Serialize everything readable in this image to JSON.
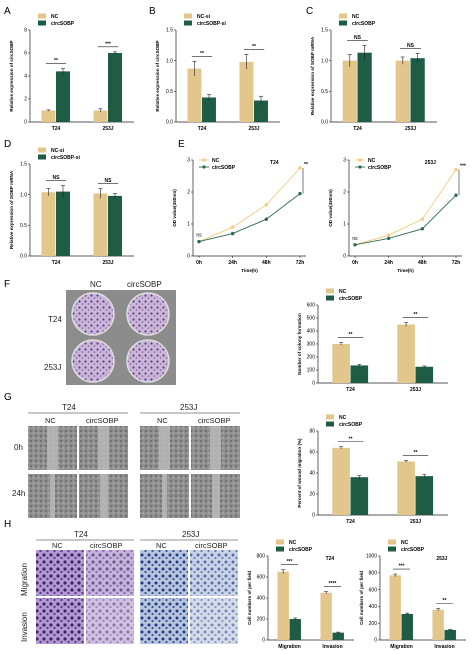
{
  "colors": {
    "nc": "#e3c68c",
    "treat": "#1e5c43",
    "axis": "#222222",
    "line_nc": "#f3cc7a",
    "line_treat": "#2e6a51"
  },
  "panels": {
    "A": "A",
    "B": "B",
    "C": "C",
    "D": "D",
    "E": "E",
    "F": "F",
    "G": "G",
    "H": "H"
  },
  "chart_data": [
    {
      "id": "A",
      "type": "bar",
      "categories": [
        "T24",
        "253J"
      ],
      "series": [
        {
          "name": "NC",
          "values": [
            1.0,
            1.0
          ],
          "err": [
            0.05,
            0.15
          ]
        },
        {
          "name": "circSOBP",
          "values": [
            4.4,
            6.0
          ],
          "err": [
            0.25,
            0.1
          ]
        }
      ],
      "ylabel": "Relative expression of circSOBP",
      "ylim": [
        0,
        8
      ],
      "yticks": [
        "0",
        "2",
        "4",
        "6",
        "8"
      ],
      "sig": [
        "**",
        "***"
      ],
      "legend": "top-left"
    },
    {
      "id": "B",
      "type": "bar",
      "categories": [
        "T24",
        "253J"
      ],
      "series": [
        {
          "name": "NC-si",
          "values": [
            0.87,
            0.98
          ],
          "err": [
            0.12,
            0.12
          ]
        },
        {
          "name": "circSOBP-si",
          "values": [
            0.4,
            0.35
          ],
          "err": [
            0.05,
            0.07
          ]
        }
      ],
      "ylabel": "Relative expression of circSOBP",
      "ylim": [
        0,
        1.5
      ],
      "yticks": [
        "0.0",
        "0.5",
        "1.0",
        "1.5"
      ],
      "sig": [
        "**",
        "**"
      ],
      "legend": "top-left"
    },
    {
      "id": "C",
      "type": "bar",
      "categories": [
        "T24",
        "253J"
      ],
      "series": [
        {
          "name": "NC",
          "values": [
            1.0,
            1.0
          ],
          "err": [
            0.1,
            0.06
          ]
        },
        {
          "name": "circSOBP",
          "values": [
            1.13,
            1.04
          ],
          "err": [
            0.12,
            0.08
          ]
        }
      ],
      "ylabel": "Relative expression of SOBP mRNA",
      "ylim": [
        0,
        1.5
      ],
      "yticks": [
        "0.0",
        "0.5",
        "1.0",
        "1.5"
      ],
      "sig": [
        "NS",
        "NS"
      ],
      "legend": "top-left"
    },
    {
      "id": "D",
      "type": "bar",
      "categories": [
        "T24",
        "253J"
      ],
      "series": [
        {
          "name": "NC-si",
          "values": [
            1.04,
            1.02
          ],
          "err": [
            0.06,
            0.08
          ]
        },
        {
          "name": "circSOBP-si",
          "values": [
            1.05,
            0.98
          ],
          "err": [
            0.1,
            0.04
          ]
        }
      ],
      "ylabel": "Relative expression of SOBP mRNA",
      "ylim": [
        0,
        1.5
      ],
      "yticks": [
        "0.0",
        "0.5",
        "1.0",
        "1.5"
      ],
      "sig": [
        "NS",
        "NS"
      ],
      "legend": "top-left"
    },
    {
      "id": "E1",
      "type": "line",
      "title": "T24",
      "x": [
        "0h",
        "24h",
        "48h",
        "72h"
      ],
      "series": [
        {
          "name": "NC",
          "values": [
            0.45,
            0.9,
            1.6,
            2.75
          ]
        },
        {
          "name": "circSOBP",
          "values": [
            0.45,
            0.7,
            1.15,
            1.95
          ]
        }
      ],
      "ylabel": "OD value(450nm)",
      "xlabel": "Time(h)",
      "ylim": [
        0,
        3
      ],
      "yticks": [
        "0",
        "1",
        "2",
        "3"
      ],
      "sig": [
        "ns",
        "**"
      ],
      "legend": "top-left"
    },
    {
      "id": "E2",
      "type": "line",
      "title": "253J",
      "x": [
        "0h",
        "24h",
        "48h",
        "72h"
      ],
      "series": [
        {
          "name": "NC",
          "values": [
            0.35,
            0.65,
            1.15,
            2.7
          ]
        },
        {
          "name": "circSOBP",
          "values": [
            0.35,
            0.55,
            0.85,
            1.9
          ]
        }
      ],
      "ylabel": "OD value(450nm)",
      "xlabel": "Time(h)",
      "ylim": [
        0,
        3
      ],
      "yticks": [
        "0",
        "1",
        "2",
        "3"
      ],
      "sig": [
        "ns",
        "***"
      ],
      "legend": "top-left"
    },
    {
      "id": "F",
      "type": "bar",
      "categories": [
        "T24",
        "253J"
      ],
      "series": [
        {
          "name": "NC",
          "values": [
            300,
            450
          ],
          "err": [
            10,
            15
          ]
        },
        {
          "name": "circSOBP",
          "values": [
            135,
            125
          ],
          "err": [
            8,
            6
          ]
        }
      ],
      "ylabel": "Number of colony formation",
      "ylim": [
        0,
        600
      ],
      "yticks": [
        "0",
        "100",
        "200",
        "300",
        "400",
        "500",
        "600"
      ],
      "sig": [
        "**",
        "**"
      ],
      "legend": "top-left"
    },
    {
      "id": "G",
      "type": "bar",
      "categories": [
        "T24",
        "253J"
      ],
      "series": [
        {
          "name": "NC",
          "values": [
            64,
            51
          ],
          "err": [
            1,
            1
          ]
        },
        {
          "name": "circSOBP",
          "values": [
            36,
            37
          ],
          "err": [
            1.5,
            1.5
          ]
        }
      ],
      "ylabel": "Percent of wound migration (%)",
      "ylim": [
        0,
        80
      ],
      "yticks": [
        "0",
        "20",
        "40",
        "60",
        "80"
      ],
      "sig": [
        "**",
        "**"
      ],
      "legend": "top-left"
    },
    {
      "id": "H1",
      "type": "bar",
      "title": "T24",
      "categories": [
        "Migration",
        "Invasion"
      ],
      "series": [
        {
          "name": "NC",
          "values": [
            650,
            450
          ],
          "err": [
            20,
            10
          ]
        },
        {
          "name": "circSOBP",
          "values": [
            200,
            70
          ],
          "err": [
            10,
            5
          ]
        }
      ],
      "ylabel": "Cell numbers of per field",
      "ylim": [
        0,
        800
      ],
      "yticks": [
        "0",
        "200",
        "400",
        "600",
        "800"
      ],
      "sig": [
        "***",
        "****"
      ],
      "legend": "top-left"
    },
    {
      "id": "H2",
      "type": "bar",
      "title": "253J",
      "categories": [
        "Migration",
        "Invasion"
      ],
      "series": [
        {
          "name": "NC",
          "values": [
            770,
            360
          ],
          "err": [
            15,
            15
          ]
        },
        {
          "name": "circSOBP",
          "values": [
            310,
            120
          ],
          "err": [
            10,
            5
          ]
        }
      ],
      "ylabel": "Cell numbers of per field",
      "ylim": [
        0,
        1000
      ],
      "yticks": [
        "0",
        "200",
        "400",
        "600",
        "800",
        "1000"
      ],
      "sig": [
        "***",
        "**"
      ],
      "legend": "top-left"
    }
  ],
  "images": {
    "F": {
      "cols": [
        "NC",
        "circSOBP"
      ],
      "rows": [
        "T24",
        "253J"
      ]
    },
    "G": {
      "groups": [
        "T24",
        "253J"
      ],
      "cols": [
        "NC",
        "circSOBP"
      ],
      "rows": [
        "0h",
        "24h"
      ]
    },
    "H": {
      "groups": [
        "T24",
        "253J"
      ],
      "cols": [
        "NC",
        "circSOBP"
      ],
      "rows": [
        "Migration",
        "Invasion"
      ]
    }
  }
}
